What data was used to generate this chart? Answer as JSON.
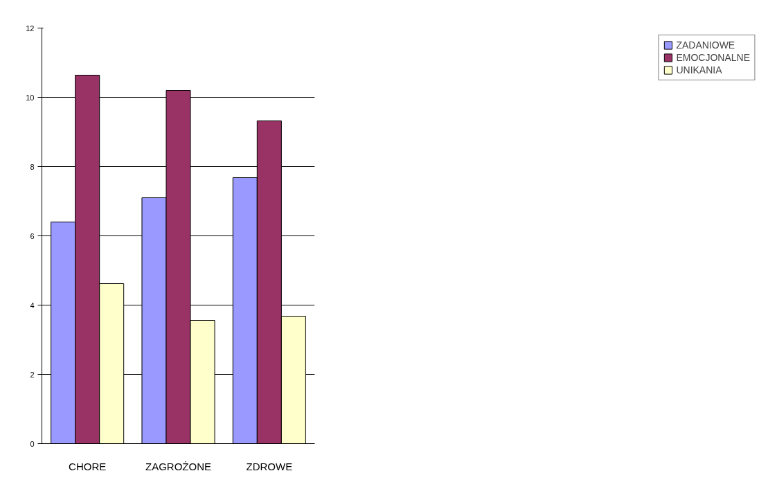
{
  "chart_data": {
    "type": "bar",
    "categories": [
      "CHORE",
      "ZAGROŻONE",
      "ZDROWE"
    ],
    "series": [
      {
        "name": "ZADANIOWE",
        "color": "#9999ff",
        "values": [
          6.4,
          7.1,
          7.68
        ]
      },
      {
        "name": "EMOCJONALNE",
        "color": "#993366",
        "values": [
          10.64,
          10.2,
          9.32
        ]
      },
      {
        "name": "UNIKANIA",
        "color": "#ffffcc",
        "values": [
          4.62,
          3.56,
          3.68
        ]
      }
    ],
    "ylim": [
      0,
      12
    ],
    "yticks": [
      0,
      2,
      4,
      6,
      8,
      10,
      12
    ],
    "grid": "y",
    "legend": "right"
  }
}
